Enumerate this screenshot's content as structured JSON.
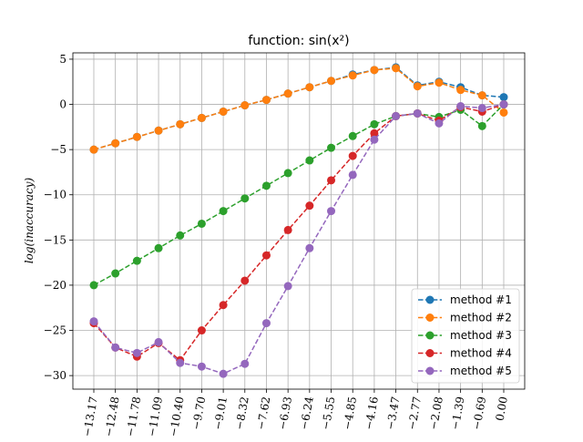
{
  "chart_data": {
    "type": "line",
    "title": "function:  sin(x²)",
    "xlabel": "",
    "ylabel": "log(inaccuracy)",
    "x": [
      "−13.17",
      "−12.48",
      "−11.78",
      "−11.09",
      "−10.40",
      "−9.70",
      "−9.01",
      "−8.32",
      "−7.62",
      "−6.93",
      "−6.24",
      "−5.55",
      "−4.85",
      "−4.16",
      "−3.47",
      "−2.77",
      "−2.08",
      "−1.39",
      "−0.69",
      "0.00"
    ],
    "ylim": [
      -31.5,
      5.7
    ],
    "yticks": [
      5,
      0,
      -5,
      -10,
      -15,
      -20,
      -25,
      -30
    ],
    "ytick_labels": [
      "5",
      "0",
      "−5",
      "−10",
      "−15",
      "−20",
      "−25",
      "−30"
    ],
    "grid": true,
    "legend_position": "lower-right",
    "series": [
      {
        "name": "method #1",
        "color": "#1f77b4",
        "values": [
          -5.0,
          -4.3,
          -3.6,
          -2.9,
          -2.2,
          -1.5,
          -0.8,
          -0.1,
          0.5,
          1.2,
          1.9,
          2.6,
          3.3,
          3.8,
          4.1,
          2.1,
          2.5,
          1.9,
          1.0,
          0.8
        ]
      },
      {
        "name": "method #2",
        "color": "#ff7f0e",
        "values": [
          -5.0,
          -4.3,
          -3.6,
          -2.9,
          -2.2,
          -1.5,
          -0.8,
          -0.1,
          0.5,
          1.2,
          1.9,
          2.6,
          3.2,
          3.8,
          4.0,
          2.0,
          2.4,
          1.6,
          1.0,
          -0.9
        ]
      },
      {
        "name": "method #3",
        "color": "#2ca02c",
        "values": [
          -20.0,
          -18.7,
          -17.3,
          -15.9,
          -14.5,
          -13.2,
          -11.8,
          -10.4,
          -9.0,
          -7.6,
          -6.2,
          -4.8,
          -3.5,
          -2.2,
          -1.3,
          -1.0,
          -1.4,
          -0.6,
          -2.4,
          0.0
        ]
      },
      {
        "name": "method #4",
        "color": "#d62728",
        "values": [
          -24.2,
          -26.9,
          -27.9,
          -26.4,
          -28.3,
          -25.0,
          -22.2,
          -19.5,
          -16.7,
          -13.9,
          -11.2,
          -8.4,
          -5.7,
          -3.2,
          -1.3,
          -1.0,
          -1.8,
          -0.3,
          -0.8,
          0.0
        ]
      },
      {
        "name": "method #5",
        "color": "#9467bd",
        "values": [
          -24.0,
          -26.9,
          -27.5,
          -26.3,
          -28.6,
          -29.0,
          -29.8,
          -28.7,
          -24.2,
          -20.1,
          -15.9,
          -11.8,
          -7.8,
          -3.9,
          -1.3,
          -1.0,
          -2.1,
          -0.2,
          -0.4,
          0.0
        ]
      }
    ]
  }
}
